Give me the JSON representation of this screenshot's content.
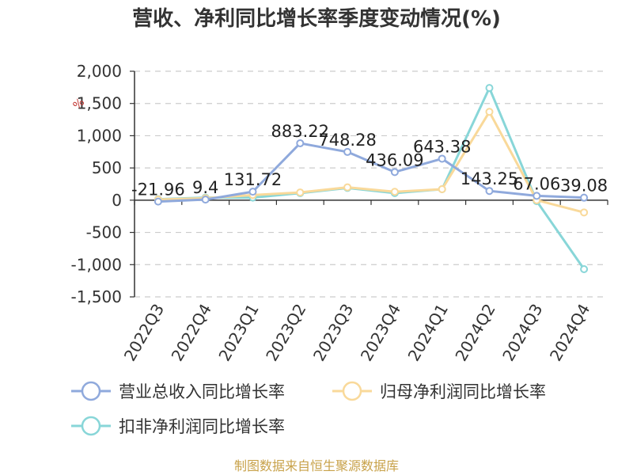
{
  "chart_data": {
    "type": "line",
    "title": "营收、净利同比增长率季度变动情况(%)",
    "unit_label": "%",
    "categories": [
      "2022Q3",
      "2022Q4",
      "2023Q1",
      "2023Q2",
      "2023Q3",
      "2023Q4",
      "2024Q1",
      "2024Q2",
      "2024Q3",
      "2024Q4"
    ],
    "yticks": [
      "2,000",
      "1,500",
      "1,000",
      "500",
      "0",
      "-500",
      "-1,000",
      "-1,500"
    ],
    "ylim": [
      -1500,
      2000
    ],
    "ystep": 500,
    "grid": true,
    "legend_position": "bottom-left",
    "series": [
      {
        "name": "营业总收入同比增长率",
        "color": "#8fa9dc",
        "values": [
          -21.96,
          9.4,
          131.72,
          883.22,
          748.28,
          436.09,
          643.38,
          143.25,
          67.06,
          39.08
        ],
        "labels": [
          "-21.96",
          "9.4",
          "131.72",
          "883.22",
          "748.28",
          "436.09",
          "643.38",
          "143.25",
          "67.06",
          "39.08"
        ]
      },
      {
        "name": "归母净利润同比增长率",
        "color": "#f9d99a",
        "values": [
          10,
          30,
          80,
          120,
          200,
          130,
          170,
          1370,
          0,
          -190
        ]
      },
      {
        "name": "扣非净利润同比增长率",
        "color": "#88d6d8",
        "values": [
          15,
          40,
          40,
          110,
          190,
          110,
          170,
          1740,
          -15,
          -1070
        ]
      }
    ]
  },
  "legend": {
    "items": [
      "营业总收入同比增长率",
      "归母净利润同比增长率",
      "扣非净利润同比增长率"
    ]
  },
  "source": "制图数据来自恒生聚源数据库"
}
